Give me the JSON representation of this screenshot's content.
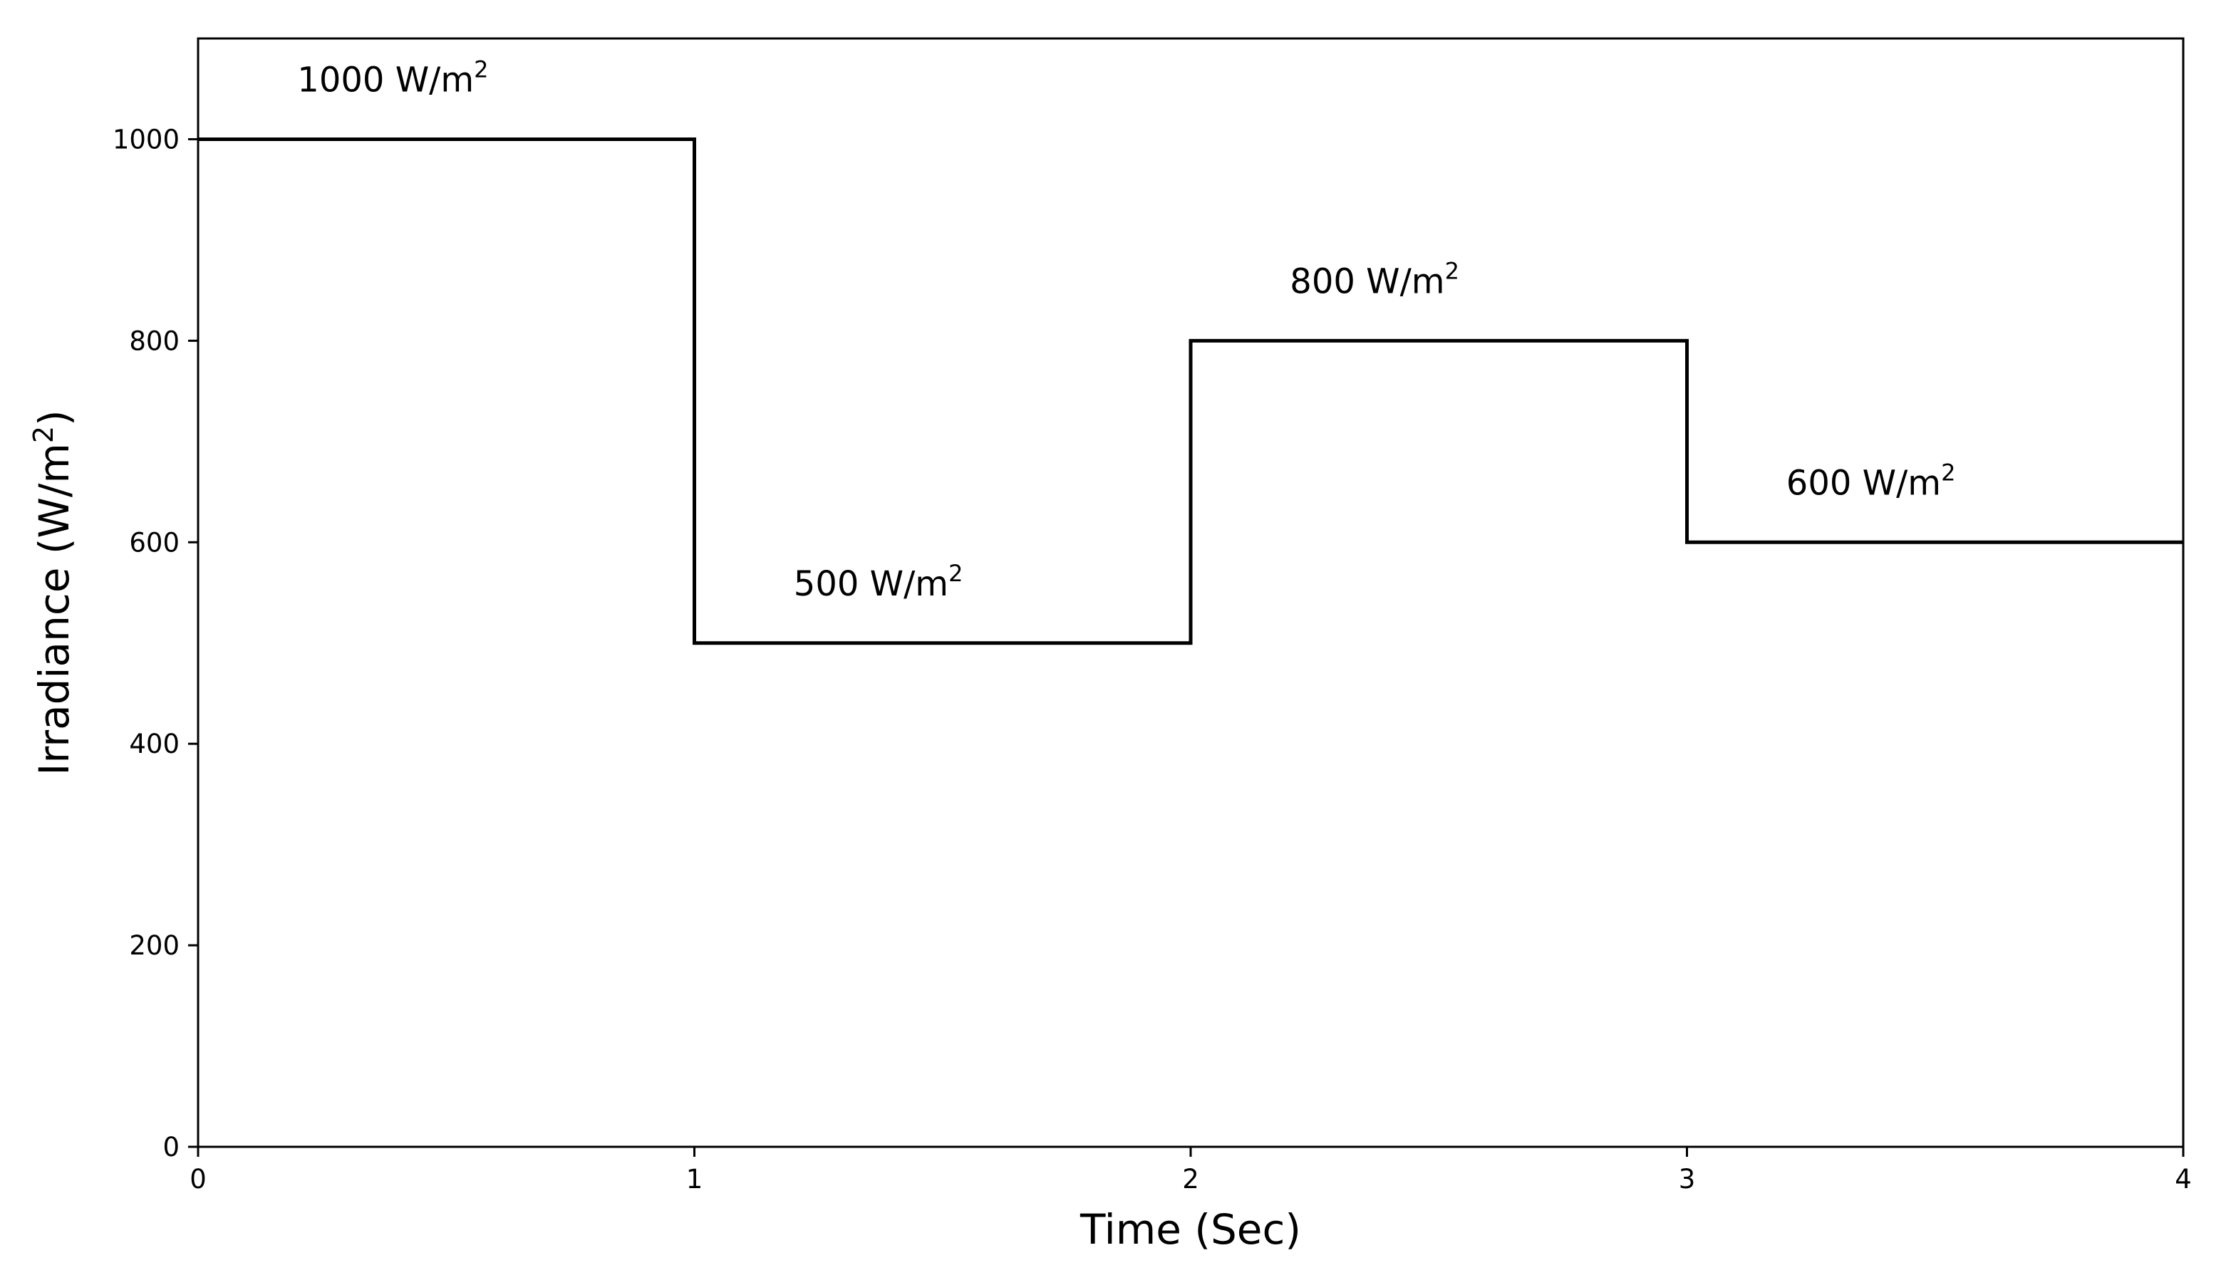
{
  "chart_data": {
    "type": "line",
    "step": true,
    "title": "",
    "xlabel": "Time (Sec)",
    "ylabel": "Irradiance (W/m²)",
    "xlim": [
      0,
      4
    ],
    "ylim": [
      0,
      1100
    ],
    "xticks": [
      0,
      1,
      2,
      3,
      4
    ],
    "yticks": [
      0,
      200,
      400,
      600,
      800,
      1000
    ],
    "grid": false,
    "line_color": "#000000",
    "series": [
      {
        "x": [
          0,
          1,
          1,
          2,
          2,
          3,
          3,
          4
        ],
        "y": [
          1000,
          1000,
          500,
          500,
          800,
          800,
          600,
          600
        ]
      }
    ],
    "annotations": [
      {
        "text": "1000 W/m",
        "sup": "2",
        "x": 0.2,
        "y": 1060
      },
      {
        "text": "500 W/m",
        "sup": "2",
        "x": 1.2,
        "y": 560
      },
      {
        "text": "800 W/m",
        "sup": "2",
        "x": 2.2,
        "y": 860
      },
      {
        "text": "600 W/m",
        "sup": "2",
        "x": 3.2,
        "y": 660
      }
    ]
  }
}
